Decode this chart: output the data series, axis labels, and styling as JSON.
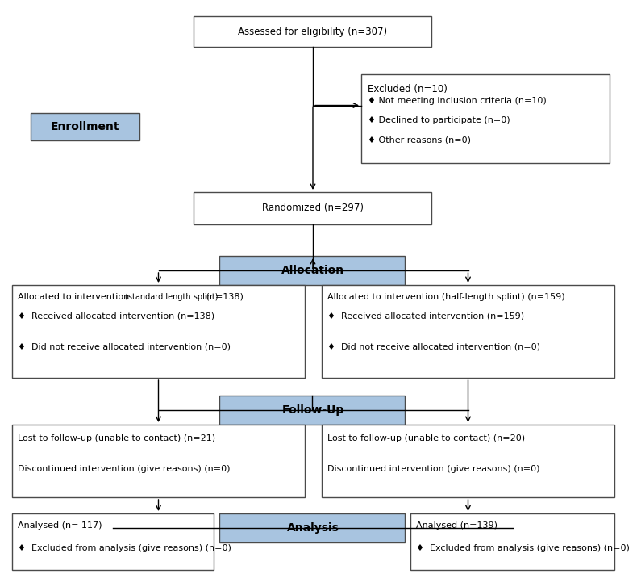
{
  "bg_color": "#ffffff",
  "box_edge_color": "#4a4a4a",
  "blue_fill": "#a8c4e0",
  "white_fill": "#ffffff",
  "text_color": "#000000",
  "arrow_color": "#000000",
  "fig_w": 7.57,
  "fig_h": 6.73,
  "enrollment_label": "Enrollment",
  "eligibility_text": "Assessed for eligibility (n=307)",
  "excluded_title": "Excluded (n=10)",
  "excluded_bullets": [
    "Not meeting inclusion criteria (n=10)",
    "Declined to participate (n=0)",
    "Other reasons (n=0)"
  ],
  "randomized_text": "Randomized (n=297)",
  "allocation_label": "Allocation",
  "left_alloc_title": "Allocated to intervention ",
  "left_alloc_title_small": "(standard length splint)",
  "left_alloc_title_end": " (n=138)",
  "left_alloc_bullets": [
    "Received allocated intervention (n=138)",
    "Did not receive allocated intervention (n=0)"
  ],
  "right_alloc_title": "Allocated to intervention (half-length splint) (n=159)",
  "right_alloc_bullets": [
    "Received allocated intervention (n=159)",
    "Did not receive allocated intervention (n=0)"
  ],
  "followup_label": "Follow-Up",
  "left_follow_lines": [
    "Lost to follow-up (unable to contact) (n=21)",
    "Discontinued intervention (give reasons) (n=0)"
  ],
  "right_follow_lines": [
    "Lost to follow-up (unable to contact) (n=20)",
    "Discontinued intervention (give reasons) (n=0)"
  ],
  "analysis_label": "Analysis",
  "left_anal_title": "Analysed (n= 117)",
  "left_anal_bullet": "Excluded from analysis (give reasons) (n=0)",
  "right_anal_title": "Analysed (n=139)",
  "right_anal_bullet": "Excluded from analysis (give reasons) (n=0)"
}
